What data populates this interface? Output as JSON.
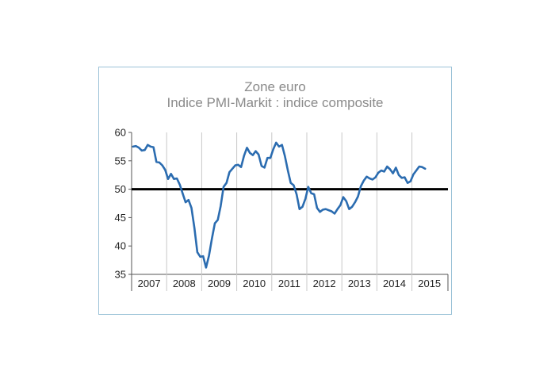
{
  "chart_data": {
    "type": "line",
    "title": "Zone euro",
    "subtitle": "Indice PMI-Markit : indice composite",
    "xlabel": "",
    "ylabel": "",
    "ylim": [
      35,
      60
    ],
    "yticks": [
      35,
      40,
      45,
      50,
      55,
      60
    ],
    "year_labels": [
      "2007",
      "2008",
      "2009",
      "2010",
      "2011",
      "2012",
      "2013",
      "2014",
      "2015"
    ],
    "reference_line": {
      "y": 50,
      "color": "#000000"
    },
    "grid": "vertical lines at year boundaries",
    "series": [
      {
        "color": "#2b6cb0",
        "x": [
          "2007-01",
          "2007-02",
          "2007-03",
          "2007-04",
          "2007-05",
          "2007-06",
          "2007-07",
          "2007-08",
          "2007-09",
          "2007-10",
          "2007-11",
          "2007-12",
          "2008-01",
          "2008-02",
          "2008-03",
          "2008-04",
          "2008-05",
          "2008-06",
          "2008-07",
          "2008-08",
          "2008-09",
          "2008-10",
          "2008-11",
          "2008-12",
          "2009-01",
          "2009-02",
          "2009-03",
          "2009-04",
          "2009-05",
          "2009-06",
          "2009-07",
          "2009-08",
          "2009-09",
          "2009-10",
          "2009-11",
          "2009-12",
          "2010-01",
          "2010-02",
          "2010-03",
          "2010-04",
          "2010-05",
          "2010-06",
          "2010-07",
          "2010-08",
          "2010-09",
          "2010-10",
          "2010-11",
          "2010-12",
          "2011-01",
          "2011-02",
          "2011-03",
          "2011-04",
          "2011-05",
          "2011-06",
          "2011-07",
          "2011-08",
          "2011-09",
          "2011-10",
          "2011-11",
          "2011-12",
          "2012-01",
          "2012-02",
          "2012-03",
          "2012-04",
          "2012-05",
          "2012-06",
          "2012-07",
          "2012-08",
          "2012-09",
          "2012-10",
          "2012-11",
          "2012-12",
          "2013-01",
          "2013-02",
          "2013-03",
          "2013-04",
          "2013-05",
          "2013-06",
          "2013-07",
          "2013-08",
          "2013-09",
          "2013-10",
          "2013-11",
          "2013-12",
          "2014-01",
          "2014-02",
          "2014-03",
          "2014-04",
          "2014-05",
          "2014-06",
          "2014-07",
          "2014-08",
          "2014-09",
          "2014-10",
          "2014-11",
          "2014-12",
          "2015-01",
          "2015-02",
          "2015-03",
          "2015-04",
          "2015-05"
        ],
        "y": [
          57.5,
          57.6,
          57.3,
          56.8,
          56.9,
          57.8,
          57.5,
          57.4,
          54.8,
          54.7,
          54.2,
          53.4,
          51.8,
          52.7,
          51.8,
          51.9,
          50.8,
          49.2,
          47.7,
          48.1,
          46.7,
          43.2,
          38.9,
          38.1,
          38.2,
          36.2,
          38.3,
          41.3,
          44.0,
          44.6,
          47.0,
          50.4,
          51.1,
          53.0,
          53.6,
          54.2,
          54.3,
          53.9,
          55.9,
          57.3,
          56.4,
          56.0,
          56.7,
          56.1,
          54.1,
          53.8,
          55.5,
          55.5,
          57.0,
          58.2,
          57.5,
          57.8,
          55.8,
          53.3,
          51.1,
          50.7,
          49.1,
          46.5,
          46.9,
          48.3,
          50.4,
          49.3,
          49.1,
          46.7,
          46.0,
          46.4,
          46.5,
          46.3,
          46.1,
          45.7,
          46.5,
          47.2,
          48.6,
          47.9,
          46.5,
          46.9,
          47.7,
          48.7,
          50.5,
          51.5,
          52.2,
          51.9,
          51.7,
          52.1,
          52.9,
          53.3,
          53.1,
          54.0,
          53.5,
          52.8,
          53.8,
          52.5,
          52.0,
          52.1,
          51.1,
          51.4,
          52.6,
          53.3,
          54.0,
          53.9,
          53.6
        ]
      }
    ]
  }
}
